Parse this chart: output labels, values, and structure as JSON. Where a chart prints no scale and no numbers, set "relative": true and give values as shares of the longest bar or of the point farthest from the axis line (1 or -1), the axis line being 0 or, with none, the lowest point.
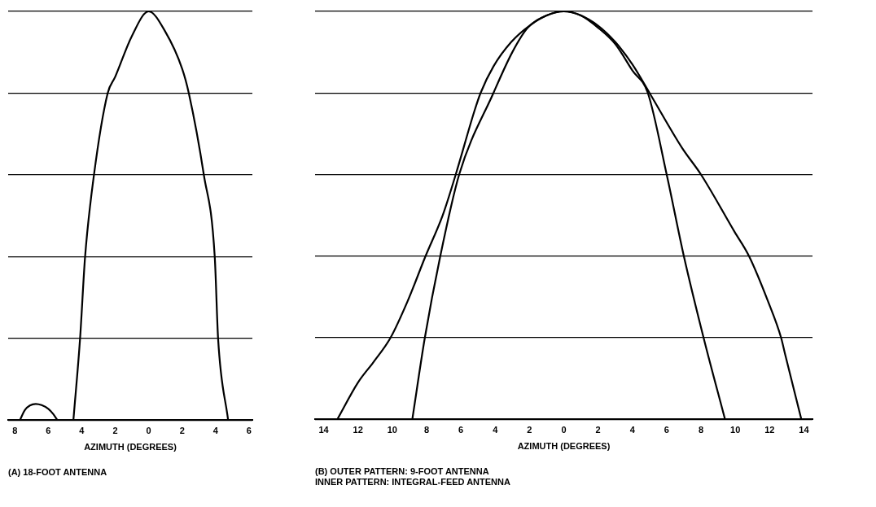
{
  "chart_data": [
    {
      "type": "line",
      "title": "(A) 18-FOOT ANTENNA",
      "xlabel": "AZIMUTH (DEGREES)",
      "relative": true,
      "grid": "y",
      "marker": "none",
      "line_style": "solid",
      "legend": false,
      "xlim": [
        -8.4,
        6.2
      ],
      "xticks": [
        {
          "value": -8,
          "label": "8"
        },
        {
          "value": -6,
          "label": "6"
        },
        {
          "value": -4,
          "label": "4"
        },
        {
          "value": -2,
          "label": "2"
        },
        0,
        2,
        4,
        6
      ],
      "series": [
        {
          "color": "#000000",
          "x": [
            -7.7,
            -7.4,
            -7.1,
            -6.75,
            -6.4,
            -6.0,
            -5.7,
            -5.45,
            null,
            -4.5,
            -4.1,
            -3.8,
            -3.27,
            -2.45,
            -2,
            -1,
            0,
            1,
            2,
            2.4,
            3.3,
            3.95,
            4.15,
            4.75
          ],
          "values": [
            0,
            0.025,
            0.036,
            0.04,
            0.037,
            0.028,
            0.015,
            0,
            null,
            0,
            0.2,
            0.4,
            0.6,
            0.8,
            0.84,
            0.94,
            1,
            0.95,
            0.86,
            0.8,
            0.6,
            0.4,
            0.2,
            0
          ]
        }
      ]
    },
    {
      "type": "line",
      "title": "(B) OUTER PATTERN: 9-FOOT ANTENNA\nINNER PATTERN: INTEGRAL-FEED ANTENNA",
      "xlabel": "AZIMUTH (DEGREES)",
      "relative": true,
      "grid": "y",
      "marker": "none",
      "line_style": "solid",
      "legend": false,
      "xlim": [
        -14.5,
        14.5
      ],
      "xticks": [
        {
          "value": -14,
          "label": "14"
        },
        {
          "value": -12,
          "label": "12"
        },
        {
          "value": -10,
          "label": "10"
        },
        {
          "value": -8,
          "label": "8"
        },
        {
          "value": -6,
          "label": "6"
        },
        {
          "value": -4,
          "label": "4"
        },
        {
          "value": -2,
          "label": "2"
        },
        0,
        2,
        4,
        6,
        8,
        10,
        12,
        14
      ],
      "series": [
        {
          "color": "#000000",
          "x": [
            -13.2,
            -12,
            -11.1,
            -10.1,
            -9.1,
            -8.06,
            -7.06,
            -6.3,
            -5.2,
            -4.85,
            -4.1,
            -3.06,
            -2,
            -1,
            0,
            1,
            2,
            3,
            4,
            5,
            6.9,
            8,
            9.95,
            10.8,
            11.9,
            12.67,
            12.9,
            13.85
          ],
          "values": [
            0,
            0.09,
            0.14,
            0.2,
            0.29,
            0.4,
            0.5,
            0.6,
            0.757,
            0.8,
            0.865,
            0.925,
            0.965,
            0.99,
            1,
            0.99,
            0.965,
            0.925,
            0.87,
            0.8,
            0.665,
            0.6,
            0.46,
            0.4,
            0.29,
            0.2,
            0.16,
            0
          ]
        },
        {
          "color": "#000000",
          "x": [
            -8.83,
            -8.1,
            -7.2,
            -6.1,
            -4.1,
            -3,
            -2.1,
            -1,
            0,
            1,
            2,
            3,
            4,
            4.9,
            6,
            7,
            8.15,
            9.4
          ],
          "values": [
            0,
            0.2,
            0.4,
            0.6,
            0.8,
            0.9,
            0.96,
            0.99,
            1,
            0.99,
            0.96,
            0.92,
            0.855,
            0.8,
            0.6,
            0.4,
            0.2,
            0
          ]
        }
      ]
    }
  ]
}
